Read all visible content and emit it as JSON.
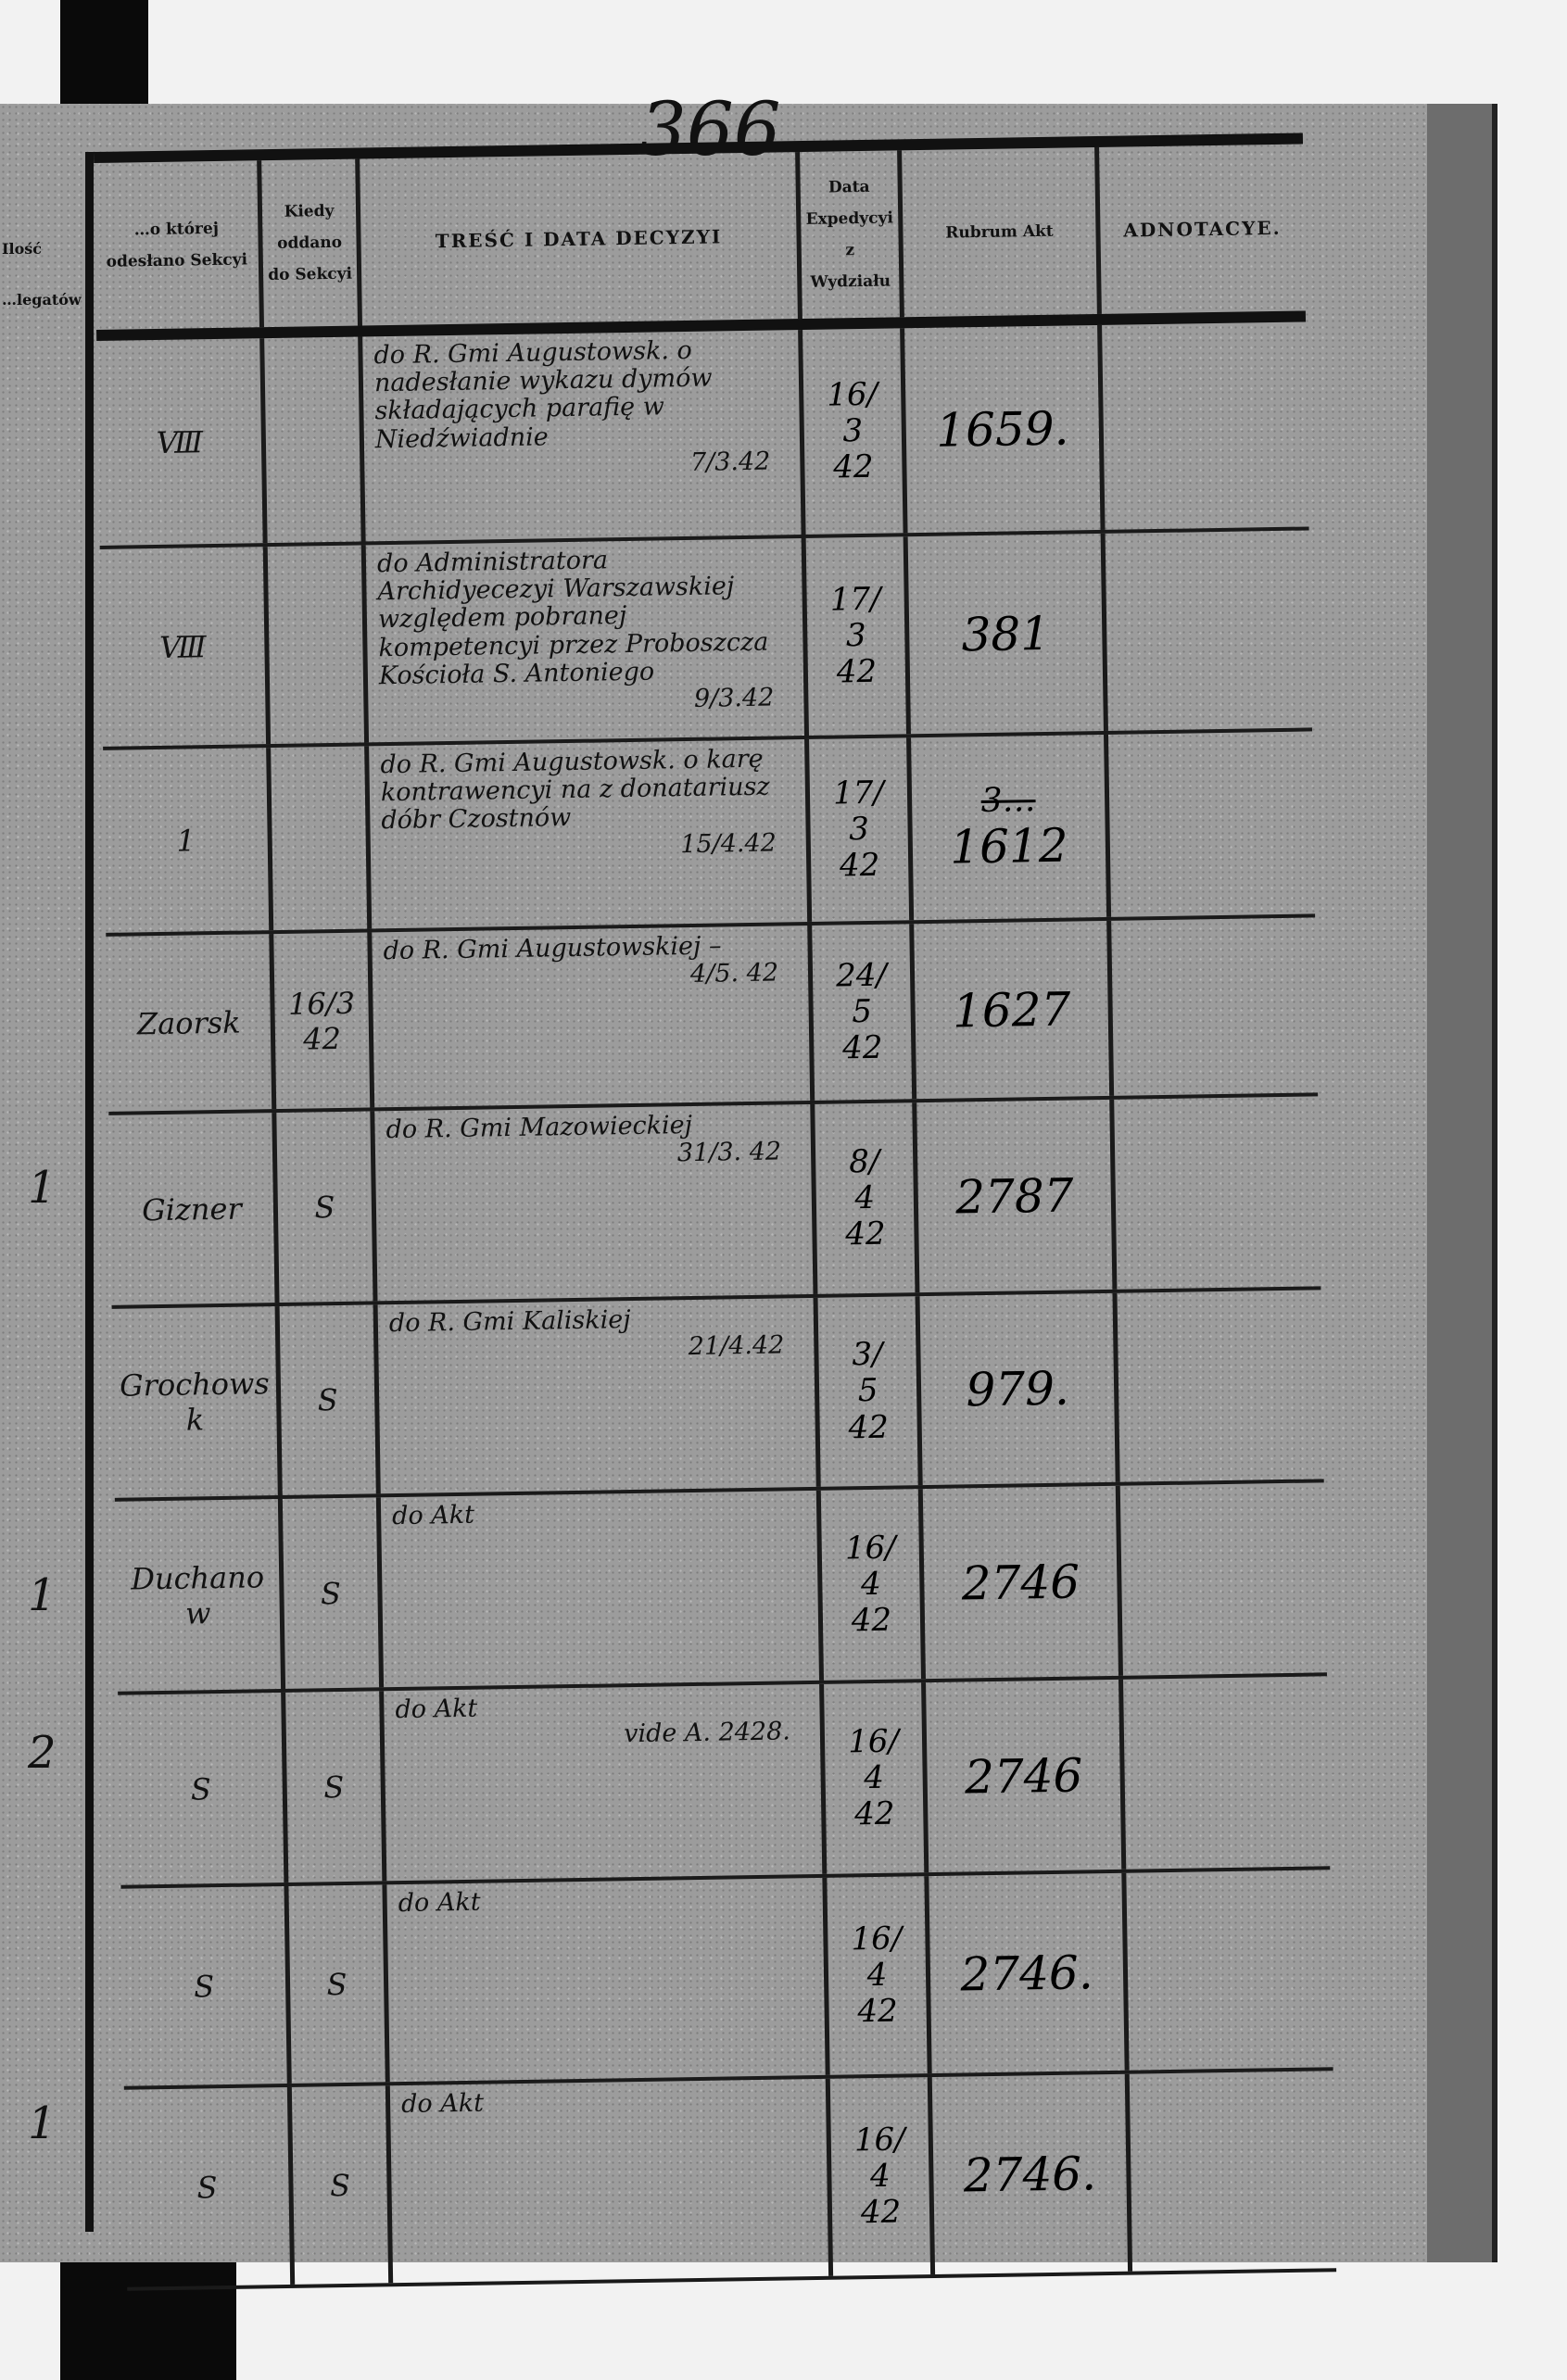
{
  "page_number": "366",
  "left_page": {
    "header": [
      "Ilość",
      "…legatów"
    ],
    "marks": [
      "1",
      "1",
      "2",
      "1"
    ]
  },
  "headers": {
    "col_section": "…o której odesłano Sekcyi",
    "col_when": "Kiedy oddano do Sekcyi",
    "col_content": "TREŚĆ I DATA DECYZYI",
    "col_dispatch": "Data Expedycyi z Wydziału",
    "col_rubrum": "Rubrum Akt",
    "col_notes": "ADNOTACYE."
  },
  "rows": [
    {
      "section": "Ⅷ",
      "when": "",
      "content": "do R. Gmi Augustowsk. o nadesłanie wykazu dymów składających parafię w Niedźwiadnie",
      "content_date": "7/3.42",
      "dispatch": [
        "16/",
        "3",
        "42"
      ],
      "rubrum": "1659.",
      "rubrum_struck": ""
    },
    {
      "section": "Ⅷ",
      "when": "",
      "content": "do Administratora Archidyecezyi Warszawskiej względem pobranej kompetencyi przez Proboszcza Kościoła S. Antoniego",
      "content_date": "9/3.42",
      "dispatch": [
        "17/",
        "3",
        "42"
      ],
      "rubrum": "381",
      "rubrum_struck": ""
    },
    {
      "section": "1",
      "when": "",
      "content": "do R. Gmi Augustowsk. o karę kontrawencyi na z donatariusz dóbr Czostnów",
      "content_date": "15/4.42",
      "dispatch": [
        "17/",
        "3",
        "42"
      ],
      "rubrum": "1612",
      "rubrum_struck": "3…"
    },
    {
      "section": "Zaorsk",
      "when": "16/3 42",
      "content": "do R. Gmi Augustowskiej –",
      "content_date": "4/5. 42",
      "dispatch": [
        "24/",
        "5",
        "42"
      ],
      "rubrum": "1627",
      "rubrum_struck": ""
    },
    {
      "section": "Gizner",
      "when": "S",
      "content": "do R. Gmi Mazowieckiej",
      "content_date": "31/3. 42",
      "dispatch": [
        "8/",
        "4",
        "42"
      ],
      "rubrum": "2787",
      "rubrum_struck": ""
    },
    {
      "section": "Grochowsk",
      "when": "S",
      "content": "do R. Gmi Kaliskiej",
      "content_date": "21/4.42",
      "dispatch": [
        "3/",
        "5",
        "42"
      ],
      "rubrum": "979.",
      "rubrum_struck": ""
    },
    {
      "section": "Duchanow",
      "when": "S",
      "content": "do Akt",
      "content_date": "",
      "dispatch": [
        "16/",
        "4",
        "42"
      ],
      "rubrum": "2746",
      "rubrum_struck": ""
    },
    {
      "section": "S",
      "when": "S",
      "content": "do Akt",
      "content_date": "vide A. 2428.",
      "dispatch": [
        "16/",
        "4",
        "42"
      ],
      "rubrum": "2746",
      "rubrum_struck": ""
    },
    {
      "section": "S",
      "when": "S",
      "content": "do Akt",
      "content_date": "",
      "dispatch": [
        "16/",
        "4",
        "42"
      ],
      "rubrum": "2746.",
      "rubrum_struck": ""
    },
    {
      "section": "S",
      "when": "S",
      "content": "do Akt",
      "content_date": "",
      "dispatch": [
        "16/",
        "4",
        "42"
      ],
      "rubrum": "2746.",
      "rubrum_struck": ""
    }
  ]
}
